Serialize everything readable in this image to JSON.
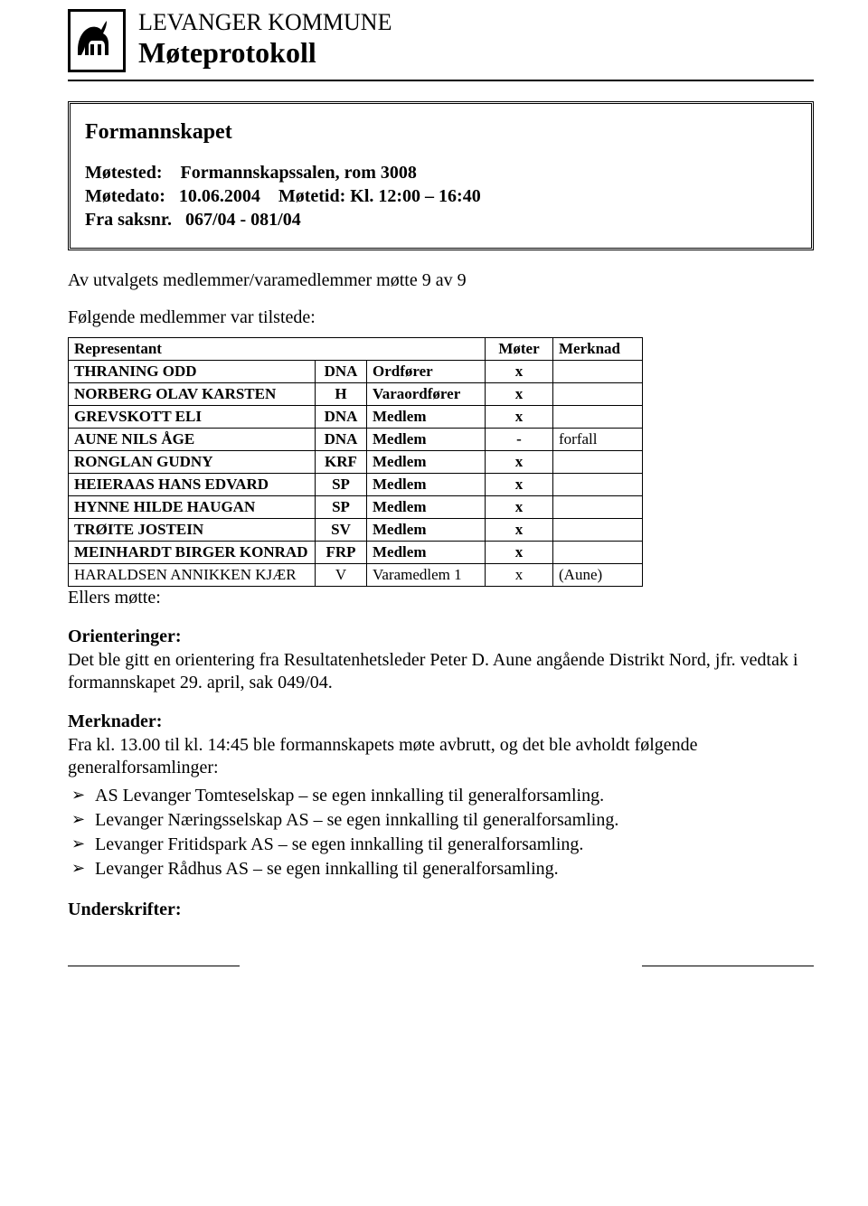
{
  "header": {
    "line1": "LEVANGER KOMMUNE",
    "line2": "Møteprotokoll"
  },
  "meeting": {
    "title": "Formannskapet",
    "place_label": "Møtested:",
    "place_value": "Formannskapssalen, rom 3008",
    "date_label": "Møtedato:",
    "date_value": "10.06.2004",
    "time_label": "Møtetid:",
    "time_value": "Kl. 12:00 – 16:40",
    "case_label": "Fra saksnr.",
    "case_value": "067/04 - 081/04"
  },
  "intro": {
    "line1": "Av utvalgets medlemmer/varamedlemmer møtte 9 av 9",
    "line2": "Følgende medlemmer var tilstede:"
  },
  "table": {
    "headers": {
      "rep": "Representant",
      "meets": "Møter",
      "note": "Merknad"
    },
    "rows": [
      {
        "name": "THRANING ODD",
        "party": "DNA",
        "role": "Ordfører",
        "meets": "x",
        "note": "",
        "bold": true
      },
      {
        "name": "NORBERG OLAV KARSTEN",
        "party": "H",
        "role": "Varaordfører",
        "meets": "x",
        "note": "",
        "bold": true
      },
      {
        "name": "GREVSKOTT ELI",
        "party": "DNA",
        "role": "Medlem",
        "meets": "x",
        "note": "",
        "bold": true
      },
      {
        "name": "AUNE NILS ÅGE",
        "party": "DNA",
        "role": "Medlem",
        "meets": "-",
        "note": "forfall",
        "bold": true
      },
      {
        "name": "RONGLAN GUDNY",
        "party": "KRF",
        "role": "Medlem",
        "meets": "x",
        "note": "",
        "bold": true
      },
      {
        "name": "HEIERAAS HANS EDVARD",
        "party": "SP",
        "role": "Medlem",
        "meets": "x",
        "note": "",
        "bold": true
      },
      {
        "name": "HYNNE HILDE HAUGAN",
        "party": "SP",
        "role": "Medlem",
        "meets": "x",
        "note": "",
        "bold": true
      },
      {
        "name": "TRØITE JOSTEIN",
        "party": "SV",
        "role": "Medlem",
        "meets": "x",
        "note": "",
        "bold": true
      },
      {
        "name": "MEINHARDT BIRGER KONRAD",
        "party": "FRP",
        "role": "Medlem",
        "meets": "x",
        "note": "",
        "bold": true
      },
      {
        "name": "HARALDSEN ANNIKKEN KJÆR",
        "party": "V",
        "role": "Varamedlem 1",
        "meets": "x",
        "note": "(Aune)",
        "bold": false
      }
    ]
  },
  "ellers": "Ellers møtte:",
  "orient": {
    "heading": "Orienteringer:",
    "text": "Det ble gitt en orientering fra Resultatenhetsleder Peter D. Aune angående Distrikt Nord, jfr. vedtak i formannskapet 29. april, sak 049/04."
  },
  "merknader": {
    "heading": "Merknader:",
    "intro": "Fra kl. 13.00 til kl. 14:45 ble formannskapets møte avbrutt, og det ble avholdt følgende generalforsamlinger:",
    "items": [
      "AS Levanger Tomteselskap – se egen innkalling til generalforsamling.",
      "Levanger Næringsselskap AS – se egen innkalling til generalforsamling.",
      "Levanger Fritidspark AS – se egen innkalling til generalforsamling.",
      "Levanger Rådhus AS – se egen innkalling til generalforsamling."
    ]
  },
  "underskrifter": "Underskrifter:"
}
